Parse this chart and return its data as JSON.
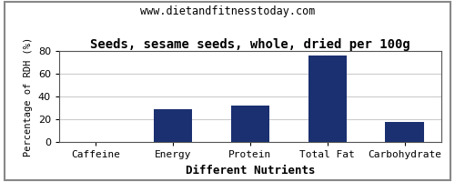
{
  "title": "Seeds, sesame seeds, whole, dried per 100g",
  "subtitle": "www.dietandfitnesstoday.com",
  "xlabel": "Different Nutrients",
  "ylabel": "Percentage of RDH (%)",
  "categories": [
    "Caffeine",
    "Energy",
    "Protein",
    "Total Fat",
    "Carbohydrate"
  ],
  "values": [
    0,
    29,
    32,
    76,
    18
  ],
  "bar_color": "#1a3070",
  "ylim": [
    0,
    80
  ],
  "yticks": [
    0,
    20,
    40,
    60,
    80
  ],
  "background_color": "#ffffff",
  "plot_bg_color": "#ffffff",
  "title_fontsize": 10,
  "subtitle_fontsize": 8.5,
  "xlabel_fontsize": 9,
  "ylabel_fontsize": 7.5,
  "tick_fontsize": 8,
  "grid_color": "#cccccc",
  "border_color": "#888888"
}
